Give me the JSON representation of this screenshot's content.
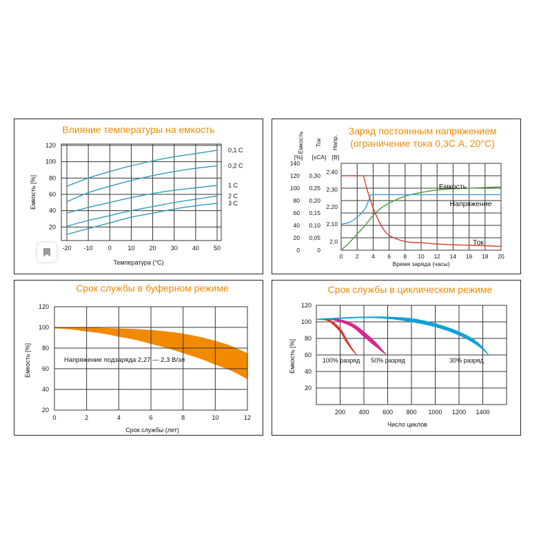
{
  "colors": {
    "title": "#f08a00",
    "grid": "#333333",
    "text": "#111111",
    "teal": "#2e9bb8",
    "blue": "#3d9cd6",
    "green": "#4c9a3c",
    "red": "#d13d2e",
    "orange": "#f18a00",
    "magenta": "#d9288d",
    "cyan": "#12a1d4",
    "red_cycle": "#d8342c"
  },
  "icons": [
    "bookmark-icon"
  ],
  "chart_data": [
    {
      "type": "line",
      "title": "Влияние температуры на емкость",
      "xlabel": "Температура (°С)",
      "ylabel": "Емкость [%]",
      "xlim": [
        -20,
        50
      ],
      "ylim": [
        0,
        120
      ],
      "x_ticks": [
        "-20",
        "-10",
        "0",
        "10",
        "20",
        "30",
        "40",
        "50"
      ],
      "y_ticks": [
        "20",
        "40",
        "60",
        "80",
        "100",
        "120"
      ],
      "grid": true,
      "x": [
        -20,
        -10,
        0,
        10,
        20,
        30,
        40,
        50
      ],
      "series": [
        {
          "name": "0,1 C",
          "values": [
            70,
            80,
            88,
            95,
            101,
            106,
            110,
            114
          ]
        },
        {
          "name": "0,2 C",
          "values": [
            51,
            62,
            70,
            77,
            83,
            88,
            92,
            95
          ]
        },
        {
          "name": "1 C",
          "values": [
            37,
            44,
            50,
            56,
            61,
            65,
            68,
            71
          ]
        },
        {
          "name": "2 C",
          "values": [
            21,
            28,
            34,
            40,
            45,
            50,
            54,
            58
          ]
        },
        {
          "name": "3 C",
          "values": [
            11,
            18,
            25,
            32,
            37,
            42,
            46,
            49
          ]
        }
      ]
    },
    {
      "type": "line",
      "title": "Заряд постоянным напряжением",
      "subtitle": "(ограничение тока 0,3С А, 20°С)",
      "xlabel": "Время заряда (часы)",
      "axis_titles": [
        "Емкость",
        "Ток",
        "Напр."
      ],
      "axis_units": [
        "[%]",
        "[хСА]",
        "[В]"
      ],
      "xlim": [
        0,
        20
      ],
      "x_ticks": [
        "0",
        "2",
        "4",
        "6",
        "8",
        "10",
        "12",
        "14",
        "16",
        "18",
        "20"
      ],
      "capacity_ticks": [
        "0",
        "20",
        "40",
        "60",
        "80",
        "100",
        "120",
        "140"
      ],
      "current_ticks": [
        "0",
        "0,05",
        "0,10",
        "0,15",
        "0,20",
        "0,25",
        "0,30"
      ],
      "voltage_ticks": [
        "2,0",
        "2,10",
        "2,20",
        "2,30",
        "2,40"
      ],
      "grid": true,
      "series": [
        {
          "name": "Емкость",
          "axis": "capacity_percent",
          "x": [
            0,
            1,
            2,
            3,
            4,
            5,
            6,
            8,
            10,
            12,
            14,
            16,
            18,
            20
          ],
          "values": [
            0,
            12,
            26,
            40,
            56,
            68,
            76,
            87,
            93,
            97,
            99,
            100,
            101,
            102
          ]
        },
        {
          "name": "Напряжение",
          "axis": "voltage_V",
          "x": [
            0,
            1,
            2,
            3,
            3.7,
            4,
            6,
            10,
            14,
            20
          ],
          "values": [
            2.1,
            2.11,
            2.14,
            2.19,
            2.27,
            2.27,
            2.27,
            2.27,
            2.27,
            2.27
          ]
        },
        {
          "name": "Ток",
          "axis": "current_CA",
          "x": [
            0,
            2.8,
            3.2,
            4,
            5,
            6,
            8,
            10,
            12,
            14,
            16,
            18,
            20
          ],
          "values": [
            0.3,
            0.3,
            0.25,
            0.17,
            0.1,
            0.06,
            0.035,
            0.03,
            0.025,
            0.022,
            0.02,
            0.018,
            0.015
          ]
        }
      ]
    },
    {
      "type": "area",
      "title": "Срок службы в буферном режиме",
      "xlabel": "Срок службы (лет)",
      "ylabel": "Емкость [%]",
      "annotation": "Напряжение подзаряда 2,27 — 2,3 В/эл",
      "xlim": [
        0,
        12
      ],
      "ylim": [
        20,
        120
      ],
      "x_ticks": [
        "0",
        "2",
        "4",
        "6",
        "8",
        "10",
        "12"
      ],
      "y_ticks": [
        "20",
        "40",
        "60",
        "80",
        "100",
        "120"
      ],
      "grid": true,
      "x": [
        0,
        1,
        2,
        3,
        4,
        5,
        6,
        7,
        8,
        9,
        10,
        11,
        12
      ],
      "upper": [
        100,
        100,
        100,
        99.5,
        99,
        98.5,
        97.5,
        96,
        94,
        91,
        87,
        82,
        75
      ],
      "lower": [
        99,
        98,
        96,
        94,
        91,
        88,
        84,
        80,
        75,
        70,
        64,
        58,
        50
      ]
    },
    {
      "type": "area",
      "title": "Срок службы в циклическом режиме",
      "xlabel": "Число циклов",
      "ylabel": "Емкость [%]",
      "xlim": [
        0,
        1600
      ],
      "ylim": [
        0,
        120
      ],
      "x_ticks": [
        "200",
        "400",
        "600",
        "800",
        "1000",
        "1200",
        "1400"
      ],
      "y_ticks": [
        "20",
        "40",
        "60",
        "80",
        "100",
        "120"
      ],
      "grid": true,
      "series": [
        {
          "name": "100% разряд",
          "color_key": "red_cycle",
          "x": [
            0,
            100,
            200,
            250,
            300,
            340
          ],
          "upper": [
            103,
            103,
            92,
            80,
            68,
            60
          ],
          "lower": [
            103,
            101,
            88,
            76,
            66,
            60
          ]
        },
        {
          "name": "50% разряд",
          "color_key": "magenta",
          "x": [
            0,
            150,
            300,
            400,
            500,
            590
          ],
          "upper": [
            103,
            104,
            98,
            88,
            75,
            60
          ],
          "lower": [
            103,
            102,
            94,
            82,
            70,
            60
          ]
        },
        {
          "name": "30% разряд",
          "color_key": "cyan",
          "x": [
            0,
            200,
            400,
            600,
            800,
            1000,
            1200,
            1350,
            1450
          ],
          "upper": [
            103,
            105,
            106,
            106,
            104,
            98,
            88,
            76,
            60
          ],
          "lower": [
            103,
            104,
            105,
            104,
            100,
            94,
            84,
            72,
            60
          ]
        }
      ]
    }
  ]
}
